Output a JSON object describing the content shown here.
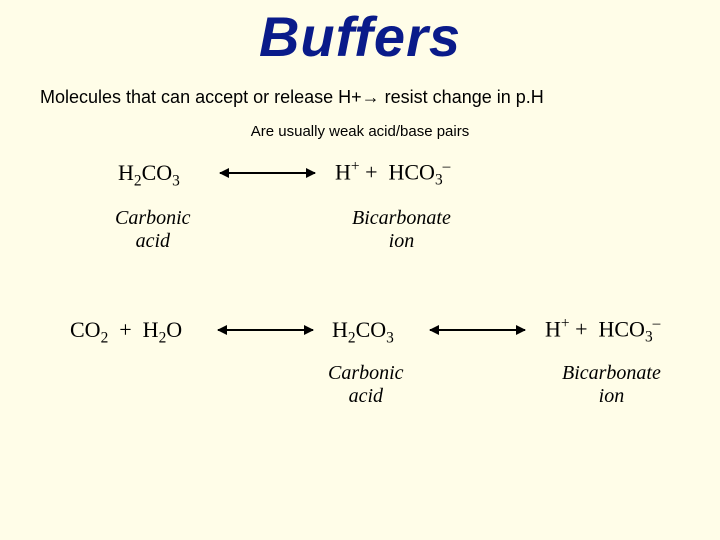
{
  "title": "Buffers",
  "definition": "Molecules that can accept or release H+→ resist change in p.H",
  "subtitle": "Are usually weak acid/base pairs",
  "eq1": {
    "left": "H<sub>2</sub>CO<sub>3</sub>",
    "right": "H<sup>+</sup> + &nbsp;HCO<sub>3</sub><sup>–</sup>",
    "leftLabel": "Carbonic<br>acid",
    "rightLabel": "Bicarbonate<br>ion"
  },
  "eq2": {
    "term1": "CO<sub>2</sub> &nbsp;+&nbsp; H<sub>2</sub>O",
    "term2": "H<sub>2</sub>CO<sub>3</sub>",
    "term3": "H<sup>+</sup> + &nbsp;HCO<sub>3</sub><sup>–</sup>",
    "label2": "Carbonic<br>acid",
    "label3": "Bicarbonate<br>ion"
  },
  "colors": {
    "background": "#fffde8",
    "title": "#0a1b8a",
    "text": "#000000"
  }
}
